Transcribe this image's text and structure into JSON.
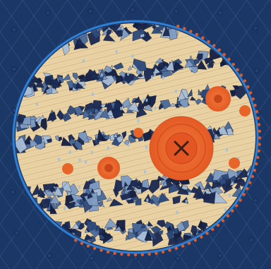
{
  "artwork": {
    "subject": "quilt",
    "colors": {
      "background_navy": "#1b3766",
      "quilting_lines": "#3f5f95",
      "planet_cream": "#e9d2a4",
      "wood_grain": "#caa774",
      "fabric_dark_navy": "#1c2a52",
      "fabric_mid_blue": "#4a6a9a",
      "fabric_light_blue": "#a7bdd6",
      "spot_orange": "#e8652a",
      "spot_orange_dark": "#c9461b",
      "rim_orange_beads": "#e05a28",
      "rim_blue_piping": "#2c7fd4",
      "button_navy": "#233f73"
    },
    "icons": [
      "x-stitch-icon",
      "raindrop-icon",
      "bead-icon",
      "button-icon"
    ]
  }
}
